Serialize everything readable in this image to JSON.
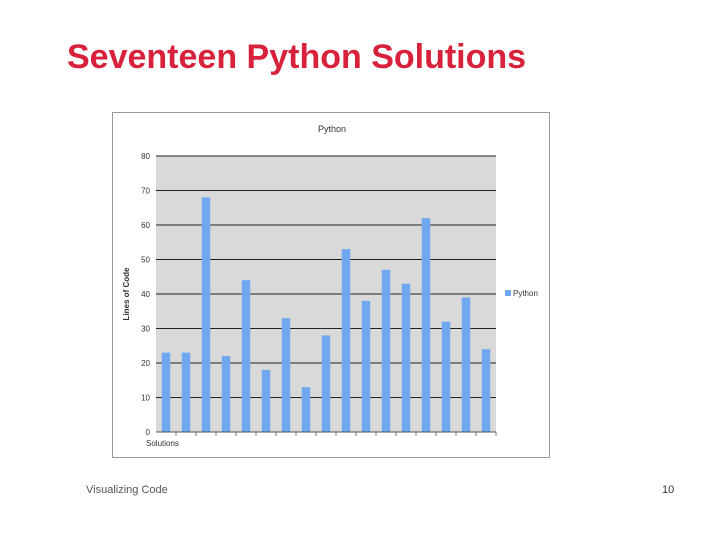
{
  "slide": {
    "title": "Seventeen Python Solutions",
    "footer_left": "Visualizing Code",
    "page_number": "10"
  },
  "chart_data": {
    "type": "bar",
    "title": "Python",
    "xlabel": "Solutions",
    "ylabel": "Lines of Code",
    "ylim": [
      0,
      80
    ],
    "yticks": [
      0,
      10,
      20,
      30,
      40,
      50,
      60,
      70,
      80
    ],
    "grid": true,
    "legend_position": "right",
    "series": [
      {
        "name": "Python",
        "color": "#6fa8f0",
        "values": [
          23,
          23,
          68,
          22,
          44,
          18,
          33,
          13,
          28,
          53,
          38,
          47,
          43,
          62,
          32,
          39,
          24
        ]
      }
    ],
    "colors": {
      "plot_background": "#d9d9d9",
      "gridline": "#222222",
      "bar": "#6fa8f0"
    }
  }
}
